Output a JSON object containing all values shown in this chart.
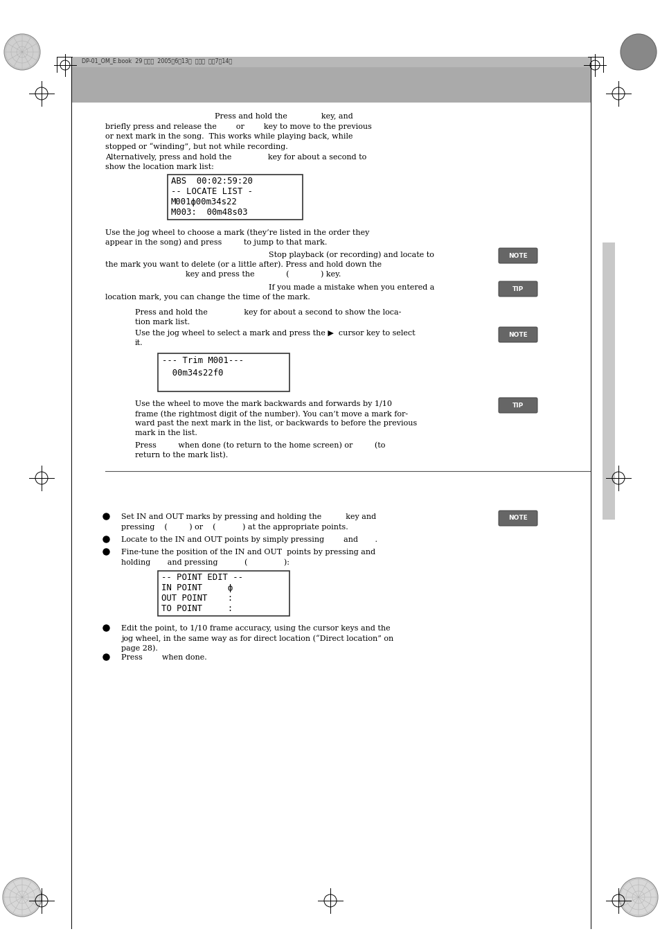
{
  "page_bg": "#ffffff",
  "header_text": "DP-01_OM_E.book  29 ページ  2005年6月13日  月曜日  午後7時14分",
  "lcd_1_lines": [
    "ABS  00:02:59:20",
    "-- LOCATE LIST -",
    "M001ф00m34s22",
    "M003:  00m48s03"
  ],
  "lcd_2_lines": [
    "--- Trim M001---",
    "  00m34s22f0   "
  ],
  "lcd_3_lines": [
    "-- POINT EDIT --",
    "IN POINT     ф",
    "OUT POINT    :",
    "TO POINT     :"
  ],
  "note_bg": "#666666",
  "tip_bg": "#666666",
  "body_font_size": 8.0,
  "lcd_font_size": 8.5,
  "header_bar_color": "#b8b8b8",
  "title_bar_color": "#aaaaaa",
  "right_bar_color": "#c8c8c8",
  "sep_line_color": "#555555"
}
